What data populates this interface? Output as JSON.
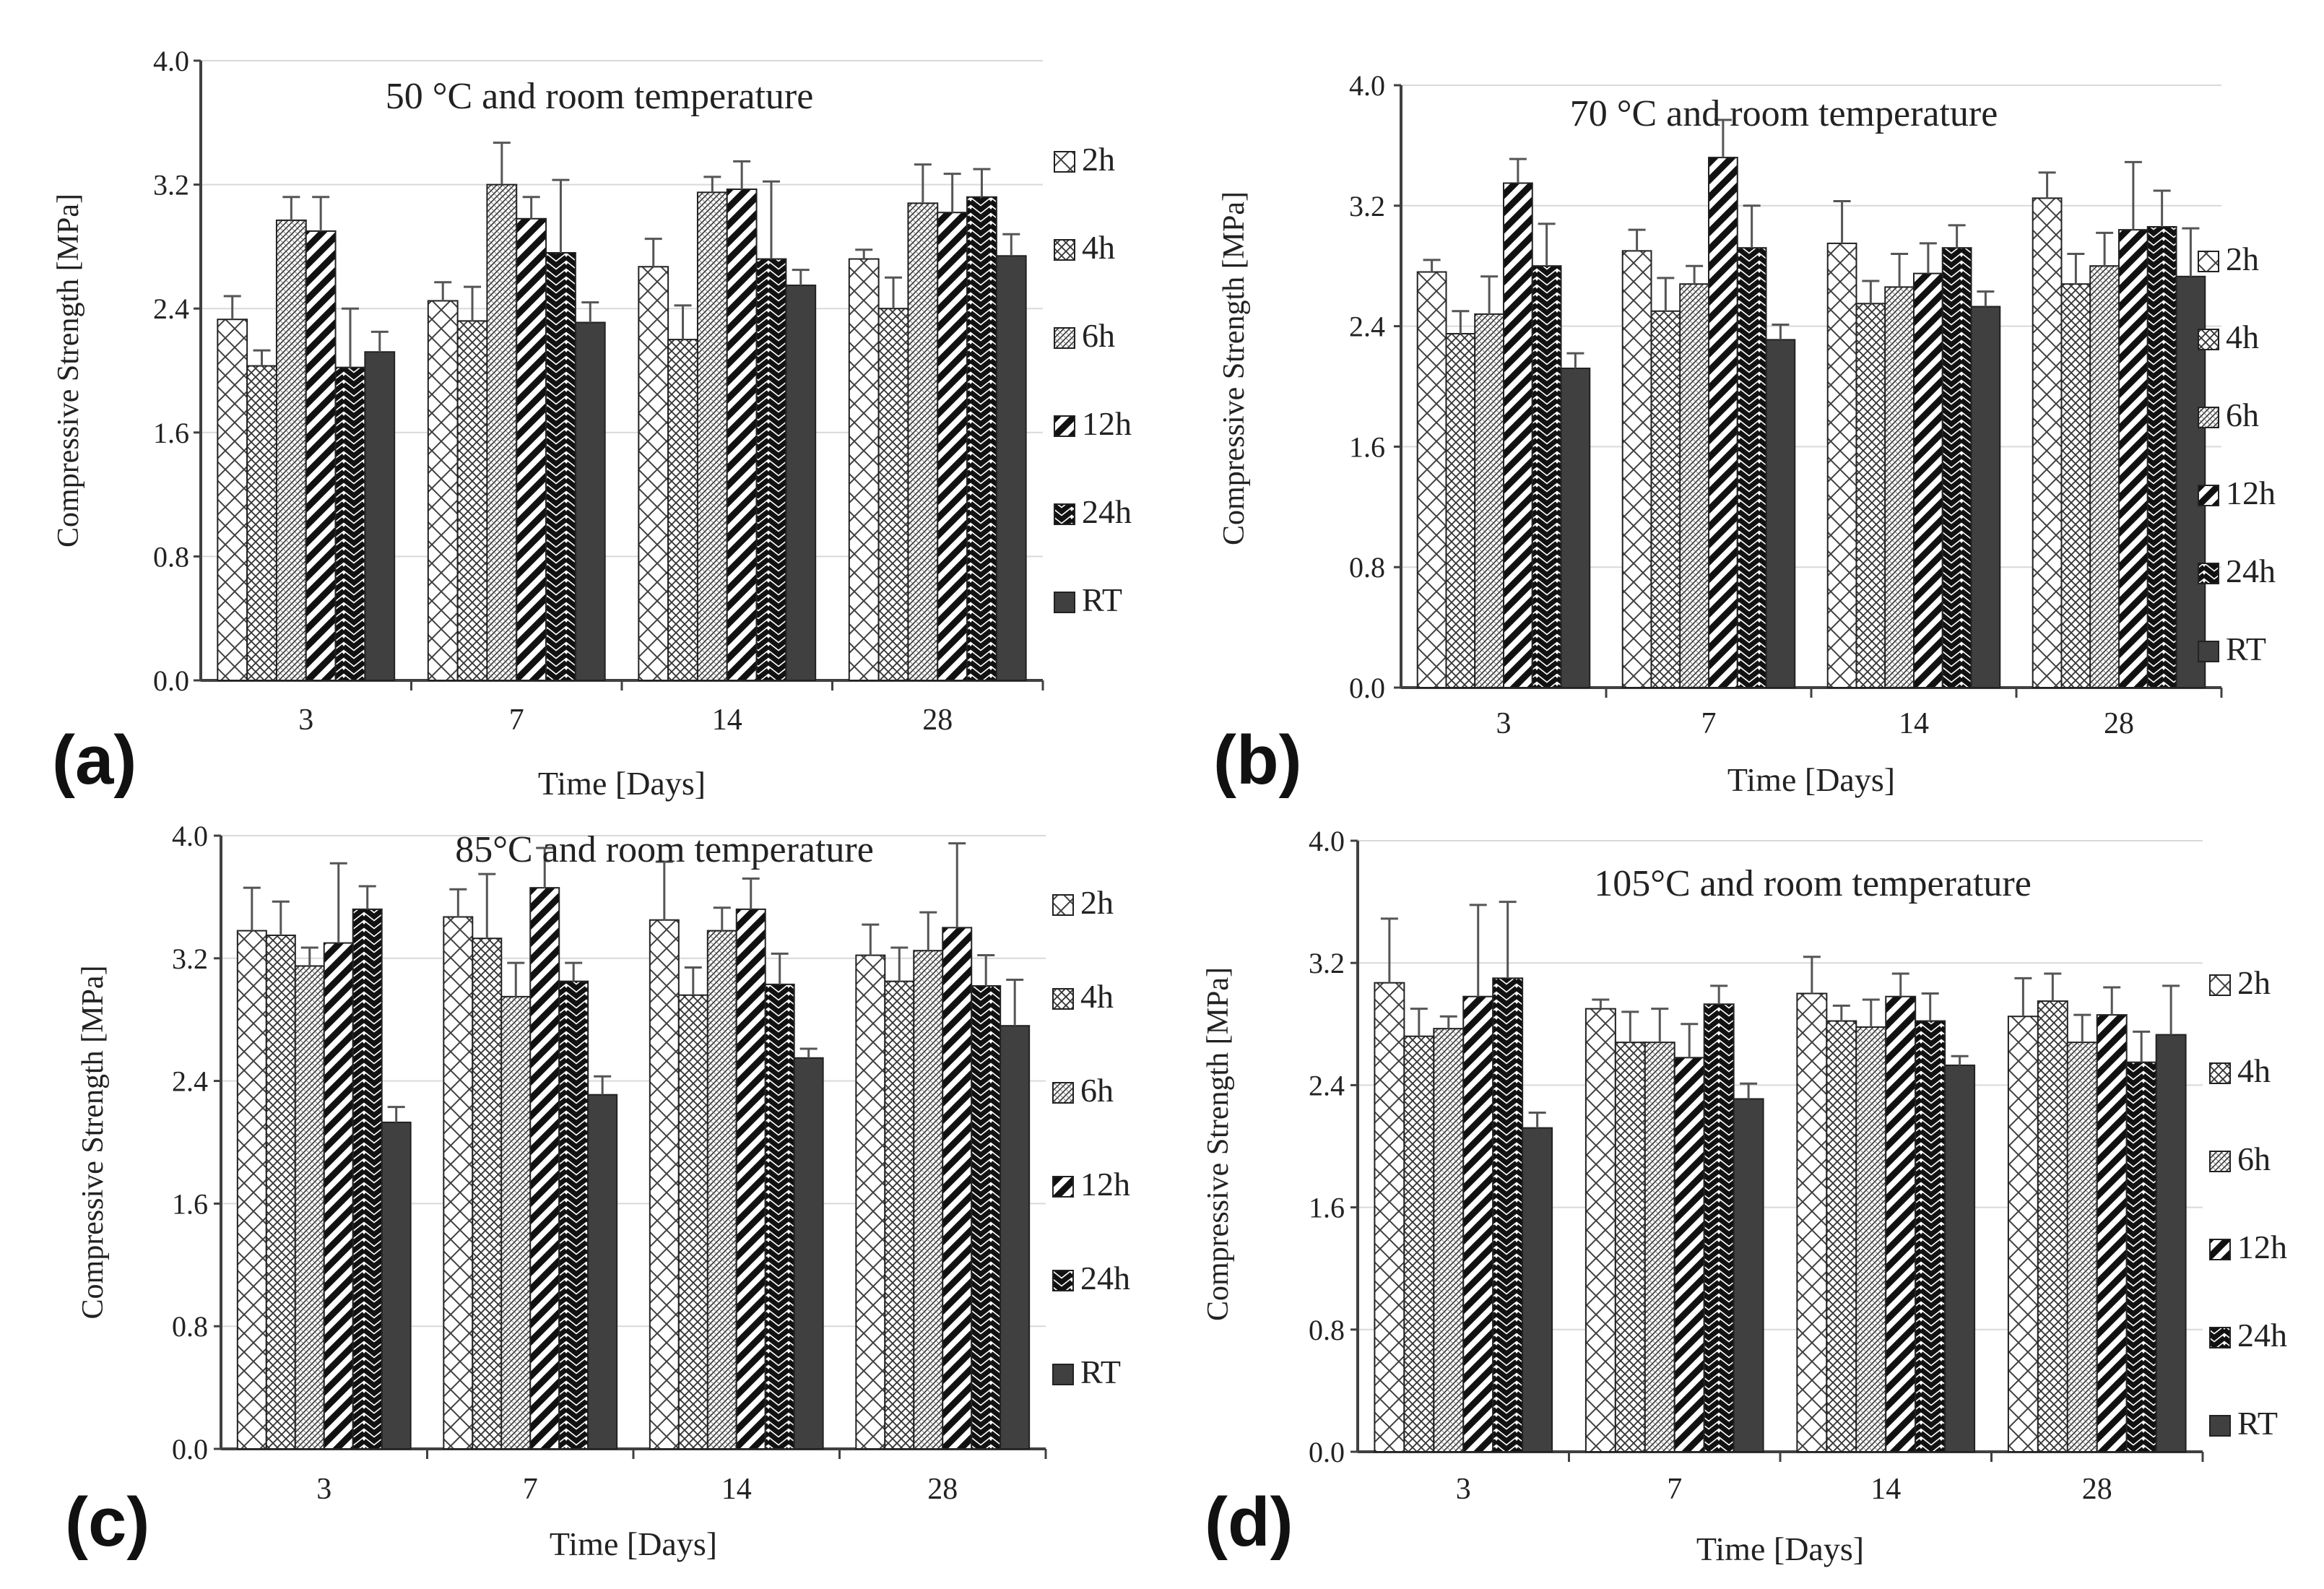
{
  "figure": {
    "background": "#ffffff",
    "grid_color": "#d9d9d9",
    "axis_color": "#404040",
    "bar_outline": "#222222",
    "rt_color": "#404040",
    "legend": [
      "2h",
      "4h",
      "6h",
      "12h",
      "24h",
      "RT"
    ]
  },
  "chart_data": [
    {
      "panel": "(a)",
      "type": "bar",
      "title": "50 °C and room temperature",
      "xlabel": "Time [Days]",
      "ylabel": "Compressive Strength [MPa]",
      "ylim": [
        0,
        4.0
      ],
      "yticks": [
        "0.0",
        "0.8",
        "1.6",
        "2.4",
        "3.2",
        "4.0"
      ],
      "categories": [
        "3",
        "7",
        "14",
        "28"
      ],
      "grid": true,
      "legend_position": "right",
      "series": [
        {
          "name": "2h",
          "pattern": "cross",
          "values": [
            2.33,
            2.45,
            2.67,
            2.72
          ],
          "errors": [
            0.15,
            0.12,
            0.18,
            0.06
          ]
        },
        {
          "name": "4h",
          "pattern": "diagcross",
          "values": [
            2.03,
            2.32,
            2.2,
            2.4
          ],
          "errors": [
            0.1,
            0.22,
            0.22,
            0.2
          ]
        },
        {
          "name": "6h",
          "pattern": "fine",
          "values": [
            2.97,
            3.2,
            3.15,
            3.08
          ],
          "errors": [
            0.15,
            0.27,
            0.1,
            0.25
          ]
        },
        {
          "name": "12h",
          "pattern": "thick",
          "values": [
            2.9,
            2.98,
            3.17,
            3.02
          ],
          "errors": [
            0.22,
            0.14,
            0.18,
            0.25
          ]
        },
        {
          "name": "24h",
          "pattern": "zigzag",
          "values": [
            2.02,
            2.76,
            2.72,
            3.12
          ],
          "errors": [
            0.38,
            0.47,
            0.5,
            0.18
          ]
        },
        {
          "name": "RT",
          "pattern": "solid",
          "values": [
            2.12,
            2.31,
            2.55,
            2.74
          ],
          "errors": [
            0.13,
            0.13,
            0.1,
            0.14
          ]
        }
      ]
    },
    {
      "panel": "(b)",
      "type": "bar",
      "title": "70 °C and room temperature",
      "xlabel": "Time [Days]",
      "ylabel": "Compressive Strength [MPa]",
      "ylim": [
        0,
        4.0
      ],
      "yticks": [
        "0.0",
        "0.8",
        "1.6",
        "2.4",
        "3.2",
        "4.0"
      ],
      "categories": [
        "3",
        "7",
        "14",
        "28"
      ],
      "grid": true,
      "legend_position": "right",
      "series": [
        {
          "name": "2h",
          "pattern": "cross",
          "values": [
            2.76,
            2.9,
            2.95,
            3.25
          ],
          "errors": [
            0.08,
            0.14,
            0.28,
            0.17
          ]
        },
        {
          "name": "4h",
          "pattern": "diagcross",
          "values": [
            2.35,
            2.5,
            2.55,
            2.68
          ],
          "errors": [
            0.15,
            0.22,
            0.15,
            0.2
          ]
        },
        {
          "name": "6h",
          "pattern": "fine",
          "values": [
            2.48,
            2.68,
            2.66,
            2.8
          ],
          "errors": [
            0.25,
            0.12,
            0.22,
            0.22
          ]
        },
        {
          "name": "12h",
          "pattern": "thick",
          "values": [
            3.35,
            3.52,
            2.75,
            3.04
          ],
          "errors": [
            0.16,
            0.25,
            0.2,
            0.45
          ]
        },
        {
          "name": "24h",
          "pattern": "zigzag",
          "values": [
            2.8,
            2.92,
            2.92,
            3.06
          ],
          "errors": [
            0.28,
            0.28,
            0.15,
            0.24
          ]
        },
        {
          "name": "RT",
          "pattern": "solid",
          "values": [
            2.12,
            2.31,
            2.53,
            2.73
          ],
          "errors": [
            0.1,
            0.1,
            0.1,
            0.32
          ]
        }
      ]
    },
    {
      "panel": "(c)",
      "type": "bar",
      "title": "85°C and room temperature",
      "xlabel": "Time [Days]",
      "ylabel": "Compressive Strength [MPa]",
      "ylim": [
        0,
        4.0
      ],
      "yticks": [
        "0.0",
        "0.8",
        "1.6",
        "2.4",
        "3.2",
        "4.0"
      ],
      "categories": [
        "3",
        "7",
        "14",
        "28"
      ],
      "grid": true,
      "legend_position": "right",
      "series": [
        {
          "name": "2h",
          "pattern": "cross",
          "values": [
            3.38,
            3.47,
            3.45,
            3.22
          ],
          "errors": [
            0.28,
            0.18,
            0.38,
            0.2
          ]
        },
        {
          "name": "4h",
          "pattern": "diagcross",
          "values": [
            3.35,
            3.33,
            2.96,
            3.05
          ],
          "errors": [
            0.22,
            0.42,
            0.18,
            0.22
          ]
        },
        {
          "name": "6h",
          "pattern": "fine",
          "values": [
            3.15,
            2.95,
            3.38,
            3.25
          ],
          "errors": [
            0.12,
            0.22,
            0.15,
            0.25
          ]
        },
        {
          "name": "12h",
          "pattern": "thick",
          "values": [
            3.3,
            3.66,
            3.52,
            3.4
          ],
          "errors": [
            0.52,
            0.26,
            0.2,
            0.55
          ]
        },
        {
          "name": "24h",
          "pattern": "zigzag",
          "values": [
            3.52,
            3.05,
            3.03,
            3.02
          ],
          "errors": [
            0.15,
            0.12,
            0.2,
            0.2
          ]
        },
        {
          "name": "RT",
          "pattern": "solid",
          "values": [
            2.13,
            2.31,
            2.55,
            2.76
          ],
          "errors": [
            0.1,
            0.12,
            0.06,
            0.3
          ]
        }
      ]
    },
    {
      "panel": "(d)",
      "type": "bar",
      "title": "105°C and room temperature",
      "xlabel": "Time [Days]",
      "ylabel": "Compressive Strength [MPa]",
      "ylim": [
        0,
        4.0
      ],
      "yticks": [
        "0.0",
        "0.8",
        "1.6",
        "2.4",
        "3.2",
        "4.0"
      ],
      "categories": [
        "3",
        "7",
        "14",
        "28"
      ],
      "grid": true,
      "legend_position": "right",
      "series": [
        {
          "name": "2h",
          "pattern": "cross",
          "values": [
            3.07,
            2.9,
            3.0,
            2.85
          ],
          "errors": [
            0.42,
            0.06,
            0.24,
            0.25
          ]
        },
        {
          "name": "4h",
          "pattern": "diagcross",
          "values": [
            2.72,
            2.68,
            2.82,
            2.95
          ],
          "errors": [
            0.18,
            0.2,
            0.1,
            0.18
          ]
        },
        {
          "name": "6h",
          "pattern": "fine",
          "values": [
            2.77,
            2.68,
            2.78,
            2.68
          ],
          "errors": [
            0.08,
            0.22,
            0.18,
            0.18
          ]
        },
        {
          "name": "12h",
          "pattern": "thick",
          "values": [
            2.98,
            2.58,
            2.98,
            2.86
          ],
          "errors": [
            0.6,
            0.22,
            0.15,
            0.18
          ]
        },
        {
          "name": "24h",
          "pattern": "zigzag",
          "values": [
            3.1,
            2.93,
            2.82,
            2.55
          ],
          "errors": [
            0.5,
            0.12,
            0.18,
            0.2
          ]
        },
        {
          "name": "RT",
          "pattern": "solid",
          "values": [
            2.12,
            2.31,
            2.53,
            2.73
          ],
          "errors": [
            0.1,
            0.1,
            0.06,
            0.32
          ]
        }
      ]
    }
  ]
}
